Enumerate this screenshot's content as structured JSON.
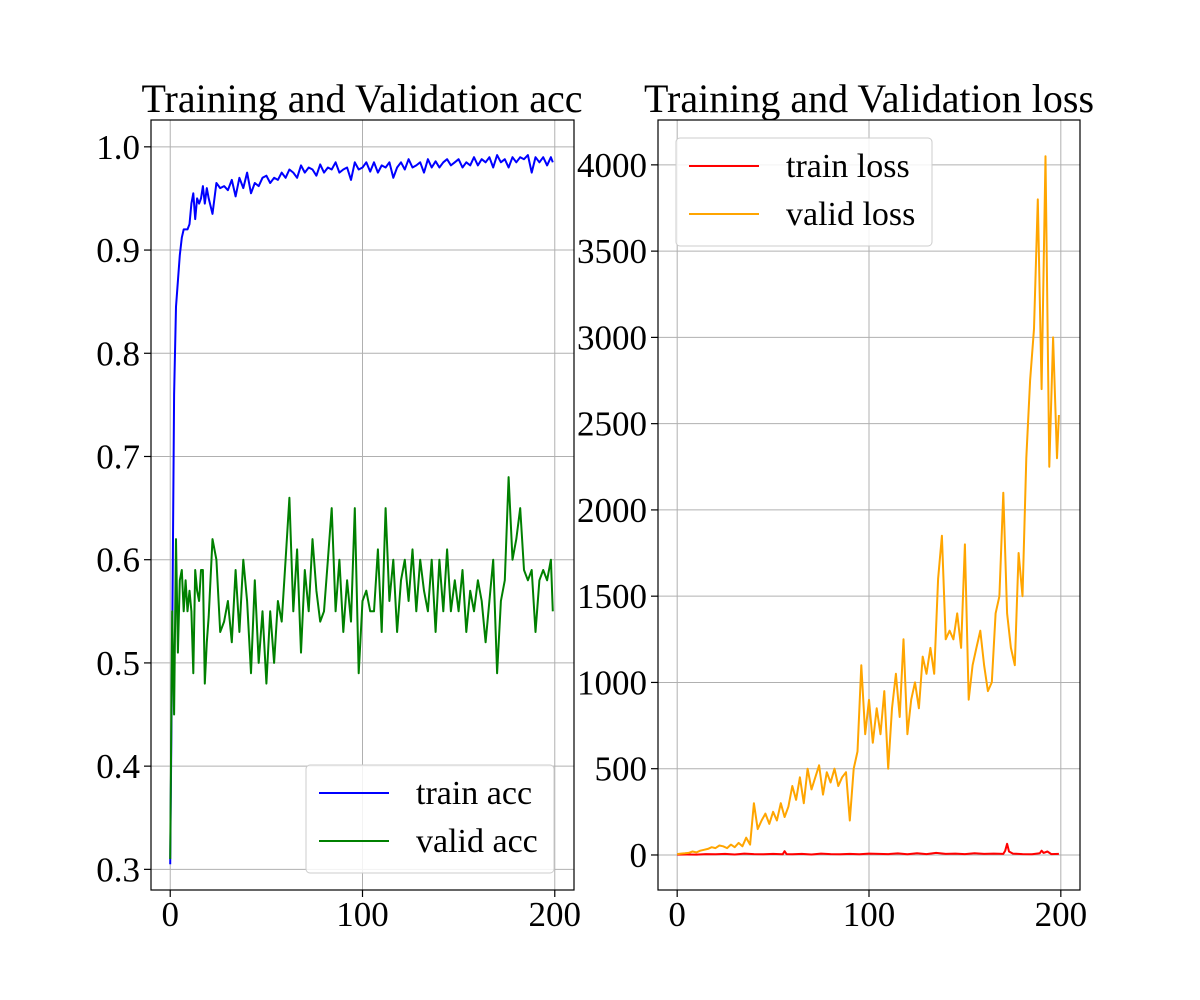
{
  "chart_data": [
    {
      "type": "line",
      "title": "Training and Validation acc",
      "xlabel": "",
      "ylabel": "",
      "xlim": [
        -10,
        210
      ],
      "ylim": [
        0.28,
        1.026
      ],
      "xticks": [
        0,
        100,
        200
      ],
      "yticks": [
        0.3,
        0.4,
        0.5,
        0.6,
        0.7,
        0.8,
        0.9,
        1.0
      ],
      "xtick_labels": [
        "0",
        "100",
        "200"
      ],
      "ytick_labels": [
        "0.3",
        "0.4",
        "0.5",
        "0.6",
        "0.7",
        "0.8",
        "0.9",
        "1.0"
      ],
      "grid": true,
      "legend": "lower right",
      "series": [
        {
          "name": "train acc",
          "color": "#0000ff",
          "x": [
            0,
            1,
            2,
            3,
            4,
            5,
            6,
            7,
            8,
            9,
            10,
            11,
            12,
            13,
            14,
            15,
            16,
            17,
            18,
            19,
            20,
            22,
            24,
            26,
            28,
            30,
            32,
            34,
            36,
            38,
            40,
            42,
            44,
            46,
            48,
            50,
            52,
            54,
            56,
            58,
            60,
            62,
            64,
            66,
            68,
            70,
            72,
            74,
            76,
            78,
            80,
            82,
            84,
            86,
            88,
            90,
            92,
            94,
            96,
            98,
            100,
            102,
            104,
            106,
            108,
            110,
            112,
            114,
            116,
            118,
            120,
            122,
            124,
            126,
            128,
            130,
            132,
            134,
            136,
            138,
            140,
            142,
            144,
            146,
            148,
            150,
            152,
            154,
            156,
            158,
            160,
            162,
            164,
            166,
            168,
            170,
            172,
            174,
            176,
            178,
            180,
            182,
            184,
            186,
            188,
            190,
            192,
            194,
            196,
            198,
            199
          ],
          "y": [
            0.305,
            0.52,
            0.76,
            0.845,
            0.87,
            0.895,
            0.912,
            0.92,
            0.92,
            0.92,
            0.925,
            0.945,
            0.955,
            0.93,
            0.95,
            0.945,
            0.95,
            0.962,
            0.945,
            0.96,
            0.95,
            0.935,
            0.965,
            0.96,
            0.962,
            0.958,
            0.968,
            0.952,
            0.97,
            0.96,
            0.975,
            0.955,
            0.965,
            0.962,
            0.97,
            0.972,
            0.965,
            0.97,
            0.968,
            0.975,
            0.97,
            0.978,
            0.975,
            0.97,
            0.982,
            0.975,
            0.98,
            0.978,
            0.972,
            0.983,
            0.975,
            0.98,
            0.978,
            0.985,
            0.975,
            0.978,
            0.98,
            0.968,
            0.985,
            0.978,
            0.98,
            0.985,
            0.976,
            0.985,
            0.975,
            0.982,
            0.98,
            0.985,
            0.97,
            0.98,
            0.985,
            0.978,
            0.988,
            0.98,
            0.982,
            0.985,
            0.975,
            0.988,
            0.98,
            0.986,
            0.98,
            0.985,
            0.988,
            0.982,
            0.985,
            0.988,
            0.98,
            0.985,
            0.982,
            0.99,
            0.982,
            0.988,
            0.985,
            0.99,
            0.98,
            0.992,
            0.985,
            0.988,
            0.98,
            0.99,
            0.985,
            0.99,
            0.988,
            0.992,
            0.975,
            0.99,
            0.985,
            0.99,
            0.982,
            0.99,
            0.985
          ]
        },
        {
          "name": "valid acc",
          "color": "#008000",
          "x": [
            0,
            1,
            2,
            3,
            4,
            5,
            6,
            7,
            8,
            9,
            10,
            11,
            12,
            13,
            14,
            15,
            16,
            17,
            18,
            19,
            20,
            22,
            24,
            26,
            28,
            30,
            32,
            34,
            36,
            38,
            40,
            42,
            44,
            46,
            48,
            50,
            52,
            54,
            56,
            58,
            60,
            62,
            64,
            66,
            68,
            70,
            72,
            74,
            76,
            78,
            80,
            82,
            84,
            86,
            88,
            90,
            92,
            94,
            96,
            98,
            100,
            102,
            104,
            106,
            108,
            110,
            112,
            114,
            116,
            118,
            120,
            122,
            124,
            126,
            128,
            130,
            132,
            134,
            136,
            138,
            140,
            142,
            144,
            146,
            148,
            150,
            152,
            154,
            156,
            158,
            160,
            162,
            164,
            166,
            168,
            170,
            172,
            174,
            176,
            178,
            180,
            182,
            184,
            186,
            188,
            190,
            192,
            194,
            196,
            198,
            199
          ],
          "y": [
            0.31,
            0.55,
            0.45,
            0.62,
            0.51,
            0.58,
            0.59,
            0.55,
            0.58,
            0.55,
            0.57,
            0.55,
            0.49,
            0.59,
            0.57,
            0.56,
            0.59,
            0.59,
            0.48,
            0.52,
            0.545,
            0.62,
            0.6,
            0.53,
            0.54,
            0.56,
            0.52,
            0.59,
            0.53,
            0.6,
            0.56,
            0.49,
            0.58,
            0.5,
            0.55,
            0.48,
            0.55,
            0.5,
            0.56,
            0.54,
            0.6,
            0.66,
            0.55,
            0.61,
            0.51,
            0.59,
            0.55,
            0.62,
            0.57,
            0.54,
            0.55,
            0.6,
            0.65,
            0.55,
            0.6,
            0.53,
            0.58,
            0.54,
            0.65,
            0.49,
            0.56,
            0.57,
            0.55,
            0.55,
            0.61,
            0.53,
            0.65,
            0.56,
            0.6,
            0.53,
            0.58,
            0.6,
            0.56,
            0.61,
            0.55,
            0.6,
            0.57,
            0.55,
            0.6,
            0.53,
            0.6,
            0.55,
            0.61,
            0.55,
            0.58,
            0.55,
            0.59,
            0.53,
            0.57,
            0.55,
            0.58,
            0.56,
            0.52,
            0.56,
            0.6,
            0.49,
            0.56,
            0.58,
            0.68,
            0.6,
            0.62,
            0.65,
            0.59,
            0.58,
            0.59,
            0.53,
            0.58,
            0.59,
            0.58,
            0.6,
            0.55
          ]
        }
      ]
    },
    {
      "type": "line",
      "title": "Training and Validation loss",
      "xlabel": "",
      "ylabel": "",
      "xlim": [
        -10,
        210
      ],
      "ylim": [
        -203,
        4260
      ],
      "xticks": [
        0,
        100,
        200
      ],
      "yticks": [
        0,
        500,
        1000,
        1500,
        2000,
        2500,
        3000,
        3500,
        4000
      ],
      "xtick_labels": [
        "0",
        "100",
        "200"
      ],
      "ytick_labels": [
        "0",
        "500",
        "1000",
        "1500",
        "2000",
        "2500",
        "3000",
        "3500",
        "4000"
      ],
      "grid": true,
      "legend": "upper left",
      "series": [
        {
          "name": "train loss",
          "color": "#ff0000",
          "x": [
            0,
            5,
            10,
            15,
            20,
            25,
            30,
            35,
            40,
            45,
            50,
            55,
            56,
            57,
            60,
            65,
            70,
            75,
            80,
            85,
            90,
            95,
            100,
            105,
            110,
            115,
            120,
            125,
            130,
            135,
            140,
            145,
            150,
            155,
            160,
            165,
            170,
            171,
            172,
            173,
            175,
            180,
            185,
            189,
            190,
            191,
            193,
            195,
            199
          ],
          "y": [
            2,
            3,
            2,
            5,
            4,
            6,
            3,
            8,
            5,
            4,
            6,
            4,
            22,
            5,
            4,
            6,
            3,
            8,
            5,
            4,
            6,
            4,
            8,
            6,
            5,
            9,
            4,
            10,
            5,
            12,
            6,
            8,
            5,
            10,
            6,
            8,
            6,
            25,
            65,
            20,
            8,
            5,
            4,
            10,
            25,
            12,
            20,
            5,
            6
          ]
        },
        {
          "name": "valid loss",
          "color": "#ffa500",
          "x": [
            0,
            2,
            4,
            6,
            8,
            10,
            12,
            14,
            16,
            18,
            20,
            22,
            24,
            26,
            28,
            30,
            32,
            34,
            36,
            38,
            40,
            42,
            44,
            46,
            48,
            50,
            52,
            54,
            56,
            58,
            60,
            62,
            64,
            66,
            68,
            70,
            72,
            74,
            76,
            78,
            80,
            82,
            84,
            86,
            88,
            90,
            92,
            94,
            96,
            98,
            100,
            102,
            104,
            106,
            108,
            110,
            112,
            114,
            116,
            118,
            120,
            122,
            124,
            126,
            128,
            130,
            132,
            134,
            136,
            138,
            140,
            142,
            144,
            146,
            148,
            150,
            152,
            154,
            156,
            158,
            160,
            162,
            164,
            166,
            168,
            170,
            172,
            174,
            176,
            178,
            180,
            182,
            184,
            186,
            188,
            190,
            192,
            194,
            196,
            198,
            199
          ],
          "y": [
            5,
            8,
            10,
            12,
            20,
            15,
            25,
            30,
            35,
            45,
            40,
            55,
            50,
            40,
            60,
            45,
            70,
            50,
            100,
            60,
            300,
            150,
            200,
            240,
            180,
            250,
            200,
            300,
            220,
            280,
            400,
            320,
            450,
            300,
            500,
            380,
            450,
            520,
            350,
            480,
            420,
            500,
            400,
            450,
            480,
            200,
            500,
            600,
            1100,
            700,
            900,
            650,
            850,
            700,
            950,
            500,
            850,
            1050,
            800,
            1250,
            700,
            900,
            1000,
            850,
            1150,
            1050,
            1200,
            1050,
            1600,
            1850,
            1250,
            1300,
            1250,
            1400,
            1200,
            1800,
            900,
            1100,
            1200,
            1300,
            1100,
            950,
            1000,
            1400,
            1500,
            2100,
            1400,
            1200,
            1100,
            1750,
            1500,
            2300,
            2750,
            3050,
            3800,
            2700,
            4050,
            2250,
            3000,
            2300,
            2550
          ]
        }
      ]
    }
  ]
}
